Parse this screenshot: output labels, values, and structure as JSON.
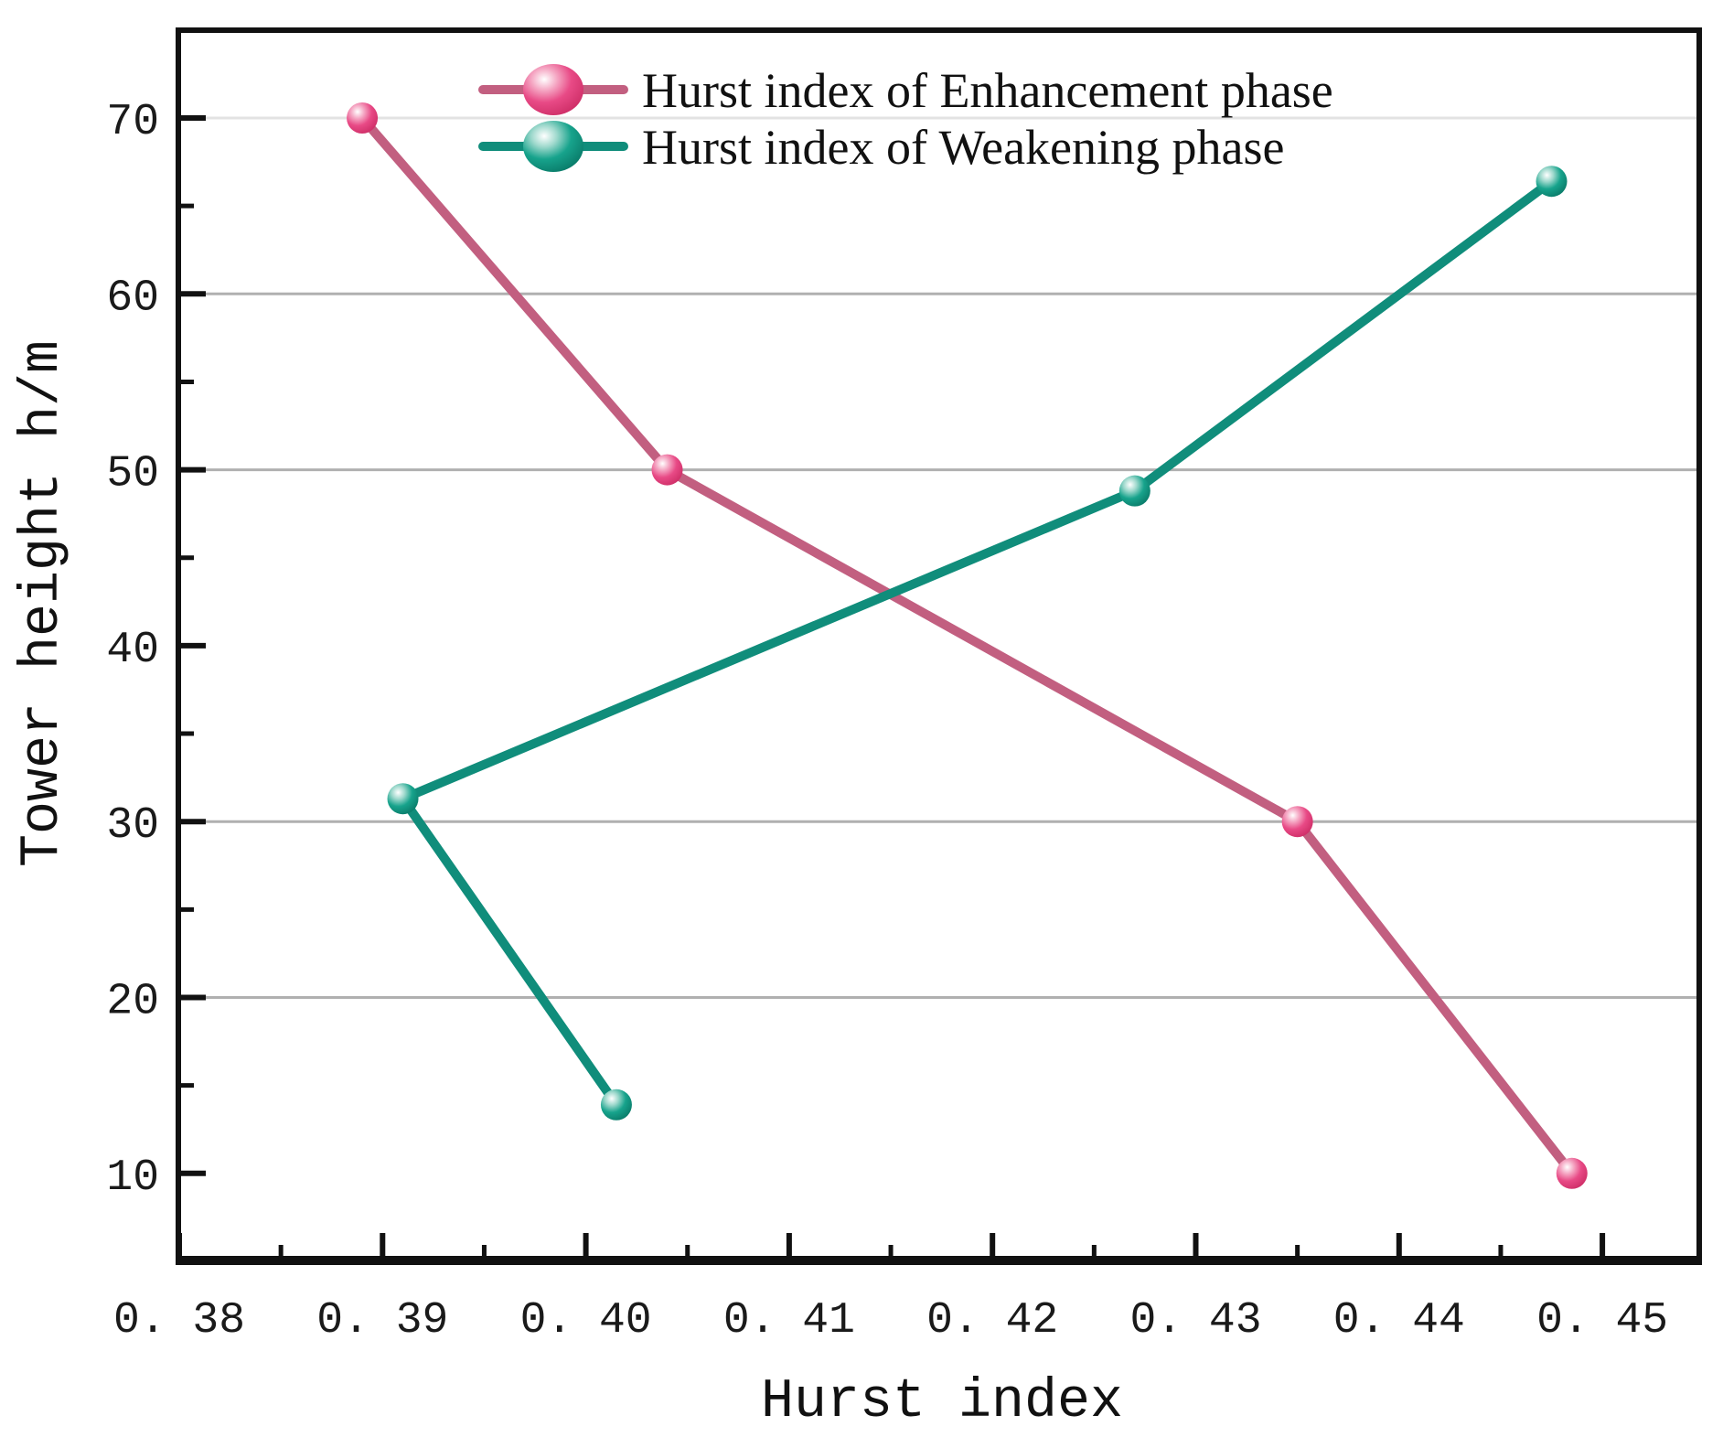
{
  "chart_data": {
    "type": "line",
    "title": "",
    "xlabel": "Hurst index",
    "ylabel": "Tower height h/m",
    "xlim": [
      0.38,
      0.455
    ],
    "ylim": [
      5,
      75
    ],
    "x_major_ticks": [
      0.38,
      0.39,
      0.4,
      0.41,
      0.42,
      0.43,
      0.44,
      0.45
    ],
    "x_tick_labels": [
      "0. 38",
      "0. 39",
      "0. 40",
      "0. 41",
      "0. 42",
      "0. 43",
      "0. 44",
      "0. 45"
    ],
    "x_minor_ticks": [
      0.385,
      0.395,
      0.405,
      0.415,
      0.425,
      0.435,
      0.445
    ],
    "y_major_ticks": [
      10,
      20,
      30,
      40,
      50,
      60,
      70
    ],
    "y_tick_labels": [
      "10",
      "20",
      "30",
      "40",
      "50",
      "60",
      "70"
    ],
    "y_minor_ticks": [
      15,
      25,
      35,
      45,
      55,
      65
    ],
    "grid": {
      "y_gridlines": [
        20,
        30,
        50,
        60
      ],
      "y_gridlines_faint": [
        70
      ],
      "gridline_color": "#b0b0b0",
      "faint_gridline_color": "#e3e3e3"
    },
    "legend": {
      "position": "top-inside",
      "entries": [
        "Hurst index of Enhancement phase",
        "Hurst index of Weakening phase"
      ]
    },
    "series": [
      {
        "name": "Hurst index of Enhancement phase",
        "color": "#c25f80",
        "marker_color": "#e84a86",
        "points": [
          [
            0.389,
            70.0
          ],
          [
            0.404,
            50.0
          ],
          [
            0.435,
            30.0
          ],
          [
            0.4485,
            10.0
          ]
        ]
      },
      {
        "name": "Hurst index of Weakening phase",
        "color": "#108d7b",
        "marker_color": "#17a38c",
        "points": [
          [
            0.4015,
            13.9
          ],
          [
            0.391,
            31.3
          ],
          [
            0.427,
            48.8
          ],
          [
            0.4475,
            66.4
          ]
        ]
      }
    ],
    "axis_color": "#111111",
    "text_color": "#1a1a1a",
    "background_color": "#ffffff"
  }
}
